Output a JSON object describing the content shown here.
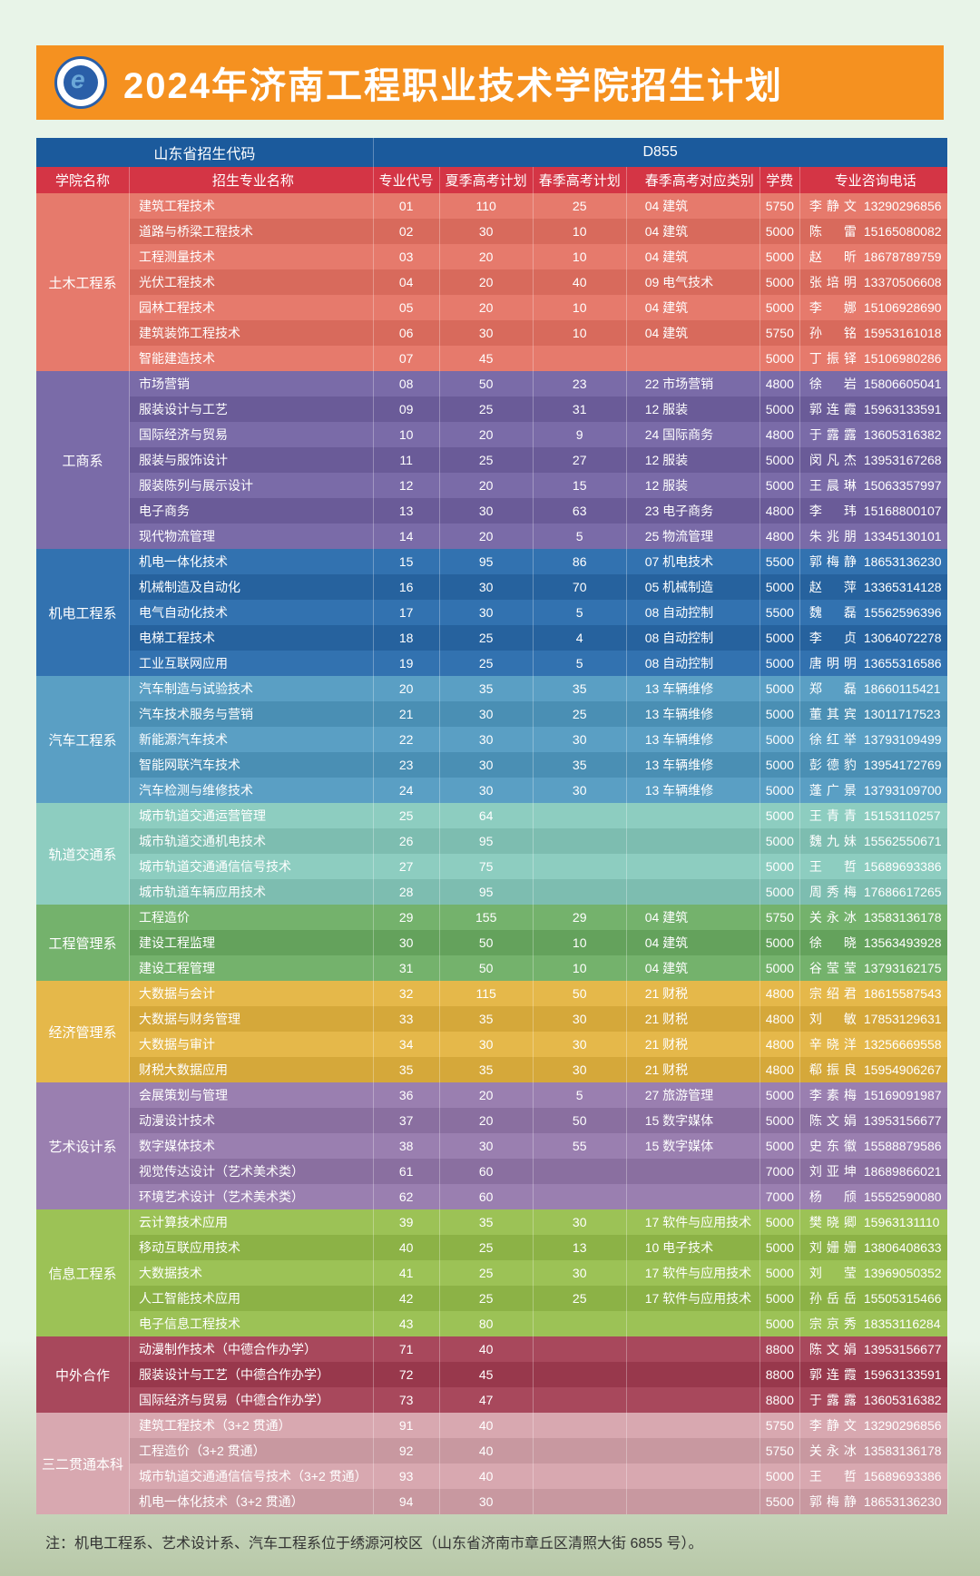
{
  "header": {
    "title": "2024年济南工程职业技术学院招生计划"
  },
  "topHeader": {
    "left": "山东省招生代码",
    "right": "D855"
  },
  "columns": {
    "dept": "学院名称",
    "major": "招生专业名称",
    "code": "专业代号",
    "summer": "夏季高考计划",
    "spring": "春季高考计划",
    "category": "春季高考对应类别",
    "fee": "学费",
    "contact": "专业咨询电话"
  },
  "departments": [
    {
      "name": "土木工程系",
      "colors": [
        "#e67a6c",
        "#d86a5c"
      ],
      "rows": [
        {
          "major": "建筑工程技术",
          "code": "01",
          "summer": "110",
          "spring": "25",
          "cat": "04 建筑",
          "fee": "5750",
          "person": "李静文",
          "phone": "13290296856"
        },
        {
          "major": "道路与桥梁工程技术",
          "code": "02",
          "summer": "30",
          "spring": "10",
          "cat": "04 建筑",
          "fee": "5000",
          "person": "陈 雷",
          "phone": "15165080082"
        },
        {
          "major": "工程测量技术",
          "code": "03",
          "summer": "20",
          "spring": "10",
          "cat": "04 建筑",
          "fee": "5000",
          "person": "赵 昕",
          "phone": "18678789759"
        },
        {
          "major": "光伏工程技术",
          "code": "04",
          "summer": "20",
          "spring": "40",
          "cat": "09 电气技术",
          "fee": "5000",
          "person": "张培明",
          "phone": "13370506608"
        },
        {
          "major": "园林工程技术",
          "code": "05",
          "summer": "20",
          "spring": "10",
          "cat": "04 建筑",
          "fee": "5000",
          "person": "李 娜",
          "phone": "15106928690"
        },
        {
          "major": "建筑装饰工程技术",
          "code": "06",
          "summer": "30",
          "spring": "10",
          "cat": "04 建筑",
          "fee": "5750",
          "person": "孙 铭",
          "phone": "15953161018"
        },
        {
          "major": "智能建造技术",
          "code": "07",
          "summer": "45",
          "spring": "",
          "cat": "",
          "fee": "5000",
          "person": "丁振铎",
          "phone": "15106980286"
        }
      ]
    },
    {
      "name": "工商系",
      "colors": [
        "#7a6ba8",
        "#6a5b98"
      ],
      "rows": [
        {
          "major": "市场营销",
          "code": "08",
          "summer": "50",
          "spring": "23",
          "cat": "22 市场营销",
          "fee": "4800",
          "person": "徐 岩",
          "phone": "15806605041"
        },
        {
          "major": "服装设计与工艺",
          "code": "09",
          "summer": "25",
          "spring": "31",
          "cat": "12 服装",
          "fee": "5000",
          "person": "郭连霞",
          "phone": "15963133591"
        },
        {
          "major": "国际经济与贸易",
          "code": "10",
          "summer": "20",
          "spring": "9",
          "cat": "24 国际商务",
          "fee": "4800",
          "person": "于露露",
          "phone": "13605316382"
        },
        {
          "major": "服装与服饰设计",
          "code": "11",
          "summer": "25",
          "spring": "27",
          "cat": "12 服装",
          "fee": "5000",
          "person": "闵凡杰",
          "phone": "13953167268"
        },
        {
          "major": "服装陈列与展示设计",
          "code": "12",
          "summer": "20",
          "spring": "15",
          "cat": "12 服装",
          "fee": "5000",
          "person": "王晨琳",
          "phone": "15063357997"
        },
        {
          "major": "电子商务",
          "code": "13",
          "summer": "30",
          "spring": "63",
          "cat": "23 电子商务",
          "fee": "4800",
          "person": "李 玮",
          "phone": "15168800107"
        },
        {
          "major": "现代物流管理",
          "code": "14",
          "summer": "20",
          "spring": "5",
          "cat": "25 物流管理",
          "fee": "4800",
          "person": "朱兆朋",
          "phone": "13345130101"
        }
      ]
    },
    {
      "name": "机电工程系",
      "colors": [
        "#3272b0",
        "#26629e"
      ],
      "rows": [
        {
          "major": "机电一体化技术",
          "code": "15",
          "summer": "95",
          "spring": "86",
          "cat": "07 机电技术",
          "fee": "5500",
          "person": "郭梅静",
          "phone": "18653136230"
        },
        {
          "major": "机械制造及自动化",
          "code": "16",
          "summer": "30",
          "spring": "70",
          "cat": "05 机械制造",
          "fee": "5000",
          "person": "赵 萍",
          "phone": "13365314128"
        },
        {
          "major": "电气自动化技术",
          "code": "17",
          "summer": "30",
          "spring": "5",
          "cat": "08 自动控制",
          "fee": "5500",
          "person": "魏 磊",
          "phone": "15562596396"
        },
        {
          "major": "电梯工程技术",
          "code": "18",
          "summer": "25",
          "spring": "4",
          "cat": "08 自动控制",
          "fee": "5000",
          "person": "李 贞",
          "phone": "13064072278"
        },
        {
          "major": "工业互联网应用",
          "code": "19",
          "summer": "25",
          "spring": "5",
          "cat": "08 自动控制",
          "fee": "5000",
          "person": "唐明明",
          "phone": "13655316586"
        }
      ]
    },
    {
      "name": "汽车工程系",
      "colors": [
        "#5a9fc4",
        "#4a8fb4"
      ],
      "rows": [
        {
          "major": "汽车制造与试验技术",
          "code": "20",
          "summer": "35",
          "spring": "35",
          "cat": "13 车辆维修",
          "fee": "5000",
          "person": "郑 磊",
          "phone": "18660115421"
        },
        {
          "major": "汽车技术服务与营销",
          "code": "21",
          "summer": "30",
          "spring": "25",
          "cat": "13 车辆维修",
          "fee": "5000",
          "person": "董其宾",
          "phone": "13011717523"
        },
        {
          "major": "新能源汽车技术",
          "code": "22",
          "summer": "30",
          "spring": "30",
          "cat": "13 车辆维修",
          "fee": "5000",
          "person": "徐红举",
          "phone": "13793109499"
        },
        {
          "major": "智能网联汽车技术",
          "code": "23",
          "summer": "30",
          "spring": "35",
          "cat": "13 车辆维修",
          "fee": "5000",
          "person": "彭德豹",
          "phone": "13954172769"
        },
        {
          "major": "汽车检测与维修技术",
          "code": "24",
          "summer": "30",
          "spring": "30",
          "cat": "13 车辆维修",
          "fee": "5000",
          "person": "蓬广景",
          "phone": "13793109700"
        }
      ]
    },
    {
      "name": "轨道交通系",
      "colors": [
        "#8dcdc0",
        "#7dbdb0"
      ],
      "rows": [
        {
          "major": "城市轨道交通运营管理",
          "code": "25",
          "summer": "64",
          "spring": "",
          "cat": "",
          "fee": "5000",
          "person": "王青青",
          "phone": "15153110257"
        },
        {
          "major": "城市轨道交通机电技术",
          "code": "26",
          "summer": "95",
          "spring": "",
          "cat": "",
          "fee": "5000",
          "person": "魏九妹",
          "phone": "15562550671"
        },
        {
          "major": "城市轨道交通通信信号技术",
          "code": "27",
          "summer": "75",
          "spring": "",
          "cat": "",
          "fee": "5000",
          "person": "王 哲",
          "phone": "15689693386"
        },
        {
          "major": "城市轨道车辆应用技术",
          "code": "28",
          "summer": "95",
          "spring": "",
          "cat": "",
          "fee": "5000",
          "person": "周秀梅",
          "phone": "17686617265"
        }
      ]
    },
    {
      "name": "工程管理系",
      "colors": [
        "#74b26c",
        "#64a25c"
      ],
      "rows": [
        {
          "major": "工程造价",
          "code": "29",
          "summer": "155",
          "spring": "29",
          "cat": "04 建筑",
          "fee": "5750",
          "person": "关永冰",
          "phone": "13583136178"
        },
        {
          "major": "建设工程监理",
          "code": "30",
          "summer": "50",
          "spring": "10",
          "cat": "04 建筑",
          "fee": "5000",
          "person": "徐 晓",
          "phone": "13563493928"
        },
        {
          "major": "建设工程管理",
          "code": "31",
          "summer": "50",
          "spring": "10",
          "cat": "04 建筑",
          "fee": "5000",
          "person": "谷莹莹",
          "phone": "13793162175"
        }
      ]
    },
    {
      "name": "经济管理系",
      "colors": [
        "#e5b84a",
        "#d5a83a"
      ],
      "rows": [
        {
          "major": "大数据与会计",
          "code": "32",
          "summer": "115",
          "spring": "50",
          "cat": "21 财税",
          "fee": "4800",
          "person": "宗绍君",
          "phone": "18615587543"
        },
        {
          "major": "大数据与财务管理",
          "code": "33",
          "summer": "35",
          "spring": "30",
          "cat": "21 财税",
          "fee": "4800",
          "person": "刘 敏",
          "phone": "17853129631"
        },
        {
          "major": "大数据与审计",
          "code": "34",
          "summer": "30",
          "spring": "30",
          "cat": "21 财税",
          "fee": "4800",
          "person": "辛晓洋",
          "phone": "13256669558"
        },
        {
          "major": "财税大数据应用",
          "code": "35",
          "summer": "35",
          "spring": "30",
          "cat": "21 财税",
          "fee": "4800",
          "person": "郗振良",
          "phone": "15954906267"
        }
      ]
    },
    {
      "name": "艺术设计系",
      "colors": [
        "#9a7fb0",
        "#8a6fa0"
      ],
      "rows": [
        {
          "major": "会展策划与管理",
          "code": "36",
          "summer": "20",
          "spring": "5",
          "cat": "27 旅游管理",
          "fee": "5000",
          "person": "李素梅",
          "phone": "15169091987"
        },
        {
          "major": "动漫设计技术",
          "code": "37",
          "summer": "20",
          "spring": "50",
          "cat": "15 数字媒体",
          "fee": "5000",
          "person": "陈文娟",
          "phone": "13953156677"
        },
        {
          "major": "数字媒体技术",
          "code": "38",
          "summer": "30",
          "spring": "55",
          "cat": "15 数字媒体",
          "fee": "5000",
          "person": "史东徽",
          "phone": "15588879586"
        },
        {
          "major": "视觉传达设计（艺术美术类）",
          "code": "61",
          "summer": "60",
          "spring": "",
          "cat": "",
          "fee": "7000",
          "person": "刘亚坤",
          "phone": "18689866021"
        },
        {
          "major": "环境艺术设计（艺术美术类）",
          "code": "62",
          "summer": "60",
          "spring": "",
          "cat": "",
          "fee": "7000",
          "person": "杨 颀",
          "phone": "15552590080"
        }
      ]
    },
    {
      "name": "信息工程系",
      "colors": [
        "#9cc256",
        "#8cb246"
      ],
      "rows": [
        {
          "major": "云计算技术应用",
          "code": "39",
          "summer": "35",
          "spring": "30",
          "cat": "17 软件与应用技术",
          "fee": "5000",
          "person": "樊晓卿",
          "phone": "15963131110"
        },
        {
          "major": "移动互联应用技术",
          "code": "40",
          "summer": "25",
          "spring": "13",
          "cat": "10 电子技术",
          "fee": "5000",
          "person": "刘姗姗",
          "phone": "13806408633"
        },
        {
          "major": "大数据技术",
          "code": "41",
          "summer": "25",
          "spring": "30",
          "cat": "17 软件与应用技术",
          "fee": "5000",
          "person": "刘 莹",
          "phone": "13969050352"
        },
        {
          "major": "人工智能技术应用",
          "code": "42",
          "summer": "25",
          "spring": "25",
          "cat": "17 软件与应用技术",
          "fee": "5000",
          "person": "孙岳岳",
          "phone": "15505315466"
        },
        {
          "major": "电子信息工程技术",
          "code": "43",
          "summer": "80",
          "spring": "",
          "cat": "",
          "fee": "5000",
          "person": "宗京秀",
          "phone": "18353116284"
        }
      ]
    },
    {
      "name": "中外合作",
      "colors": [
        "#a8485c",
        "#98384c"
      ],
      "rows": [
        {
          "major": "动漫制作技术（中德合作办学）",
          "code": "71",
          "summer": "40",
          "spring": "",
          "cat": "",
          "fee": "8800",
          "person": "陈文娟",
          "phone": "13953156677"
        },
        {
          "major": "服装设计与工艺（中德合作办学）",
          "code": "72",
          "summer": "45",
          "spring": "",
          "cat": "",
          "fee": "8800",
          "person": "郭连霞",
          "phone": "15963133591"
        },
        {
          "major": "国际经济与贸易（中德合作办学）",
          "code": "73",
          "summer": "47",
          "spring": "",
          "cat": "",
          "fee": "8800",
          "person": "于露露",
          "phone": "13605316382"
        }
      ]
    },
    {
      "name": "三二贯通本科",
      "colors": [
        "#d8a8b0",
        "#c898a0"
      ],
      "rows": [
        {
          "major": "建筑工程技术（3+2 贯通）",
          "code": "91",
          "summer": "40",
          "spring": "",
          "cat": "",
          "fee": "5750",
          "person": "李静文",
          "phone": "13290296856"
        },
        {
          "major": "工程造价（3+2 贯通）",
          "code": "92",
          "summer": "40",
          "spring": "",
          "cat": "",
          "fee": "5750",
          "person": "关永冰",
          "phone": "13583136178"
        },
        {
          "major": "城市轨道交通通信信号技术（3+2 贯通）",
          "code": "93",
          "summer": "40",
          "spring": "",
          "cat": "",
          "fee": "5000",
          "person": "王 哲",
          "phone": "15689693386"
        },
        {
          "major": "机电一体化技术（3+2 贯通）",
          "code": "94",
          "summer": "30",
          "spring": "",
          "cat": "",
          "fee": "5500",
          "person": "郭梅静",
          "phone": "18653136230"
        }
      ]
    }
  ],
  "footnote": "注：机电工程系、艺术设计系、汽车工程系位于绣源河校区（山东省济南市章丘区清照大街 6855 号）。"
}
